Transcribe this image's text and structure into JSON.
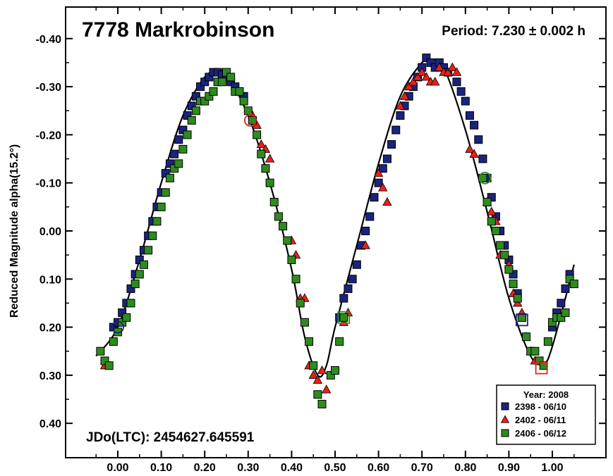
{
  "chart_data": {
    "type": "scatter",
    "title": "7778 Markrobinson",
    "period_label": "Period: 7.230 ± 0.002 h",
    "jdo_label": "JDo(LTC): 2454627.645591",
    "xlabel": "",
    "ylabel": "Reduced Magnitude alpha(15.2°)",
    "xlim": [
      -0.05,
      1.1
    ],
    "ylim": [
      0.45,
      -0.45
    ],
    "y_inverted": true,
    "x_ticks": [
      0.0,
      0.1,
      0.2,
      0.3,
      0.4,
      0.5,
      0.6,
      0.7,
      0.8,
      0.9,
      1.0
    ],
    "x_tick_labels": [
      "0.00",
      "0.10",
      "0.20",
      "0.30",
      "0.40",
      "0.50",
      "0.60",
      "0.70",
      "0.80",
      "0.90",
      "1.00"
    ],
    "y_ticks": [
      -0.4,
      -0.3,
      -0.2,
      -0.1,
      0.0,
      0.1,
      0.2,
      0.3,
      0.4
    ],
    "y_tick_labels": [
      "-0.40",
      "-0.30",
      "-0.20",
      "-0.10",
      "0.00",
      "0.10",
      "0.20",
      "0.30",
      "0.40"
    ],
    "legend": {
      "title": "Year: 2008",
      "placement": "bottom-right",
      "entries": [
        {
          "label": "2398 - 06/10",
          "marker": "square",
          "color": "#1a237e"
        },
        {
          "label": "2402 - 06/11",
          "marker": "triangle",
          "color": "#e8201a"
        },
        {
          "label": "2406 - 06/12",
          "marker": "square",
          "color": "#2e8b1e"
        }
      ]
    },
    "fit_curve": {
      "color": "#000000",
      "x": [
        -0.05,
        0.0,
        0.05,
        0.1,
        0.15,
        0.2,
        0.23,
        0.25,
        0.3,
        0.35,
        0.4,
        0.43,
        0.46,
        0.48,
        0.5,
        0.55,
        0.6,
        0.65,
        0.7,
        0.72,
        0.75,
        0.8,
        0.85,
        0.9,
        0.95,
        0.98,
        1.0,
        1.05
      ],
      "y": [
        0.26,
        0.2,
        0.06,
        -0.1,
        -0.24,
        -0.32,
        -0.33,
        -0.325,
        -0.24,
        -0.1,
        0.08,
        0.22,
        0.3,
        0.28,
        0.2,
        0.03,
        -0.14,
        -0.28,
        -0.35,
        -0.355,
        -0.34,
        -0.21,
        -0.04,
        0.14,
        0.26,
        0.275,
        0.24,
        0.07
      ]
    },
    "series": [
      {
        "name": "2398 - 06/10",
        "color": "#1a237e",
        "marker": "square",
        "x": [
          -0.01,
          0.0,
          0.01,
          0.02,
          0.03,
          0.04,
          0.05,
          0.06,
          0.07,
          0.08,
          0.09,
          0.1,
          0.11,
          0.12,
          0.13,
          0.14,
          0.15,
          0.16,
          0.17,
          0.18,
          0.19,
          0.2,
          0.21,
          0.22,
          0.23,
          0.24,
          0.25,
          0.26,
          0.27,
          0.28,
          0.29,
          0.51,
          0.52,
          0.53,
          0.54,
          0.55,
          0.56,
          0.57,
          0.58,
          0.59,
          0.6,
          0.61,
          0.62,
          0.63,
          0.64,
          0.65,
          0.66,
          0.67,
          0.68,
          0.69,
          0.7,
          0.71,
          0.72,
          0.73,
          0.74,
          0.75,
          0.76,
          0.78,
          0.79,
          0.8,
          0.81,
          0.82,
          0.83,
          0.84,
          0.85,
          0.86,
          0.87,
          0.88,
          0.89,
          0.9,
          0.91,
          0.92,
          0.93,
          1.0,
          1.01,
          1.02,
          1.03,
          1.04
        ],
        "y": [
          0.2,
          0.19,
          0.17,
          0.15,
          0.12,
          0.09,
          0.06,
          0.04,
          0.01,
          -0.02,
          -0.05,
          -0.08,
          -0.12,
          -0.14,
          -0.16,
          -0.19,
          -0.21,
          -0.24,
          -0.26,
          -0.28,
          -0.3,
          -0.31,
          -0.32,
          -0.33,
          -0.33,
          -0.325,
          -0.32,
          -0.31,
          -0.3,
          -0.29,
          -0.28,
          0.18,
          0.14,
          0.12,
          0.1,
          0.07,
          0.03,
          0.0,
          -0.03,
          -0.07,
          -0.1,
          -0.13,
          -0.15,
          -0.18,
          -0.21,
          -0.24,
          -0.26,
          -0.28,
          -0.3,
          -0.32,
          -0.34,
          -0.36,
          -0.35,
          -0.34,
          -0.35,
          -0.34,
          -0.33,
          -0.31,
          -0.29,
          -0.27,
          -0.24,
          -0.22,
          -0.19,
          -0.15,
          -0.11,
          -0.07,
          -0.03,
          0.0,
          0.03,
          0.06,
          0.09,
          0.13,
          0.18,
          0.2,
          0.17,
          0.15,
          0.12,
          0.09
        ]
      },
      {
        "name": "2402 - 06/11",
        "color": "#e8201a",
        "marker": "triangle",
        "x": [
          -0.03,
          0.31,
          0.32,
          0.33,
          0.34,
          0.35,
          0.4,
          0.41,
          0.42,
          0.43,
          0.44,
          0.45,
          0.46,
          0.47,
          0.48,
          0.52,
          0.53,
          0.57,
          0.6,
          0.61,
          0.62,
          0.65,
          0.66,
          0.67,
          0.68,
          0.69,
          0.7,
          0.71,
          0.72,
          0.73,
          0.74,
          0.75,
          0.76,
          0.77,
          0.78,
          0.81,
          0.82,
          0.85,
          0.86,
          0.87,
          0.88,
          0.9,
          0.91,
          0.92,
          0.93,
          0.94,
          0.95,
          0.96
        ],
        "y": [
          0.28,
          -0.24,
          -0.22,
          -0.18,
          -0.17,
          -0.15,
          0.02,
          0.05,
          0.14,
          0.14,
          0.28,
          0.3,
          0.31,
          0.29,
          0.33,
          0.19,
          0.17,
          0.03,
          -0.12,
          -0.09,
          -0.06,
          -0.26,
          -0.28,
          -0.3,
          -0.31,
          -0.32,
          -0.33,
          -0.32,
          -0.31,
          -0.31,
          -0.34,
          -0.33,
          -0.33,
          -0.34,
          -0.33,
          -0.17,
          -0.16,
          -0.06,
          -0.04,
          -0.02,
          0.05,
          0.07,
          0.13,
          0.15,
          0.17,
          0.22,
          0.25,
          0.27
        ]
      },
      {
        "name": "2406 - 06/12",
        "color": "#2e8b1e",
        "marker": "square",
        "x": [
          -0.04,
          -0.03,
          -0.02,
          -0.01,
          0.0,
          0.01,
          0.02,
          0.03,
          0.04,
          0.05,
          0.06,
          0.07,
          0.08,
          0.09,
          0.1,
          0.11,
          0.12,
          0.13,
          0.14,
          0.15,
          0.16,
          0.17,
          0.18,
          0.19,
          0.2,
          0.21,
          0.22,
          0.23,
          0.24,
          0.25,
          0.26,
          0.27,
          0.28,
          0.29,
          0.3,
          0.31,
          0.32,
          0.33,
          0.34,
          0.35,
          0.36,
          0.37,
          0.38,
          0.39,
          0.4,
          0.41,
          0.42,
          0.43,
          0.44,
          0.45,
          0.46,
          0.47,
          0.49,
          0.5,
          0.51,
          0.52,
          0.84,
          0.85,
          0.86,
          0.87,
          0.88,
          0.89,
          0.9,
          0.91,
          0.92,
          0.93,
          0.94,
          0.95,
          0.96,
          0.97,
          0.98,
          0.99,
          1.0,
          1.01,
          1.02,
          1.03,
          1.04,
          1.05
        ],
        "y": [
          0.25,
          0.27,
          0.28,
          0.23,
          0.21,
          0.19,
          0.18,
          0.15,
          0.11,
          0.09,
          0.07,
          0.04,
          0.01,
          -0.02,
          -0.05,
          -0.08,
          -0.11,
          -0.13,
          -0.14,
          -0.17,
          -0.2,
          -0.23,
          -0.25,
          -0.27,
          -0.27,
          -0.28,
          -0.29,
          -0.31,
          -0.31,
          -0.33,
          -0.32,
          -0.29,
          -0.29,
          -0.27,
          -0.25,
          -0.23,
          -0.2,
          -0.16,
          -0.13,
          -0.1,
          -0.06,
          -0.03,
          -0.01,
          0.02,
          0.06,
          0.1,
          0.15,
          0.19,
          0.23,
          0.28,
          0.34,
          0.36,
          0.3,
          0.29,
          0.23,
          0.18,
          -0.11,
          -0.06,
          -0.02,
          0.0,
          0.03,
          0.05,
          0.08,
          0.11,
          0.14,
          0.18,
          0.22,
          0.25,
          0.25,
          0.27,
          0.28,
          0.23,
          0.19,
          0.18,
          0.18,
          0.17,
          0.1,
          0.11
        ]
      }
    ],
    "highlighted_points": [
      {
        "x": 0.0,
        "y": 0.2,
        "marker": "circle",
        "color": "#1a237e"
      },
      {
        "x": 0.305,
        "y": -0.23,
        "marker": "circle",
        "color": "#e8201a"
      },
      {
        "x": 0.52,
        "y": 0.18,
        "marker": "square",
        "color": "#2e8b1e"
      },
      {
        "x": 0.845,
        "y": -0.11,
        "marker": "circle",
        "color": "#2e8b1e"
      },
      {
        "x": 0.93,
        "y": 0.185,
        "marker": "square",
        "color": "#1a237e"
      },
      {
        "x": 0.975,
        "y": 0.285,
        "marker": "square",
        "color": "#e8201a"
      }
    ]
  }
}
